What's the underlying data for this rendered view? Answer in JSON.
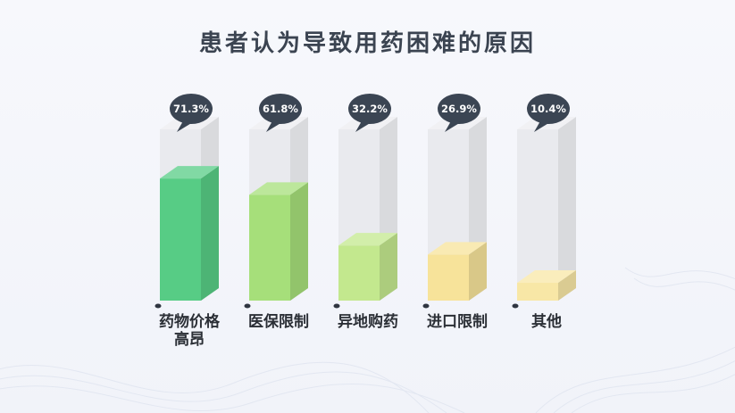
{
  "title": "患者认为导致用药困难的原因",
  "chart_data": {
    "type": "bar",
    "title": "患者认为导致用药困难的原因",
    "categories": [
      "药物价格高昂",
      "医保限制",
      "异地购药",
      "进口限制",
      "其他"
    ],
    "category_display": [
      [
        "药物价格",
        "高昂"
      ],
      [
        "医保限制"
      ],
      [
        "异地购药"
      ],
      [
        "进口限制"
      ],
      [
        "其他"
      ]
    ],
    "values": [
      71.3,
      61.8,
      32.2,
      26.9,
      10.4
    ],
    "value_labels": [
      "71.3%",
      "61.8%",
      "32.2%",
      "26.9%",
      "10.4%"
    ],
    "ylim": [
      0,
      100
    ],
    "bar_colors": [
      "#57cc85",
      "#a6df7a",
      "#c3e88e",
      "#f7e39a",
      "#f8e7a6"
    ],
    "track_color": "#e9eaee",
    "bubble_color": "#3b4553",
    "grid": false
  }
}
